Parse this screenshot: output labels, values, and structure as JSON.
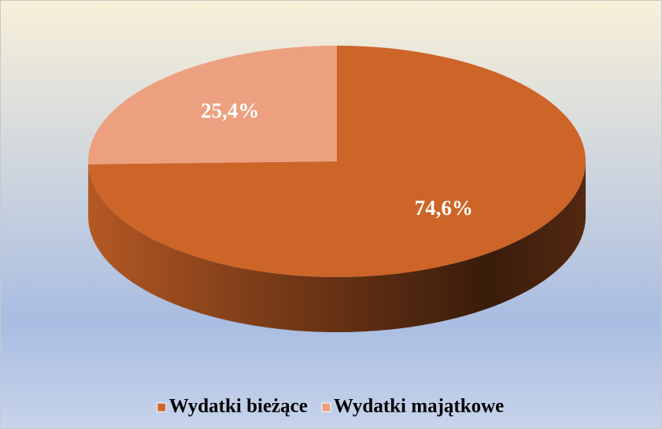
{
  "chart_data": {
    "type": "pie",
    "categories": [
      "Wydatki bieżące",
      "Wydatki majątkowe"
    ],
    "values": [
      74.6,
      25.4
    ],
    "value_labels": [
      "74,6%",
      "25,4%"
    ],
    "colors": [
      "#cd6428",
      "#eca07f"
    ],
    "legend": "bottom"
  }
}
